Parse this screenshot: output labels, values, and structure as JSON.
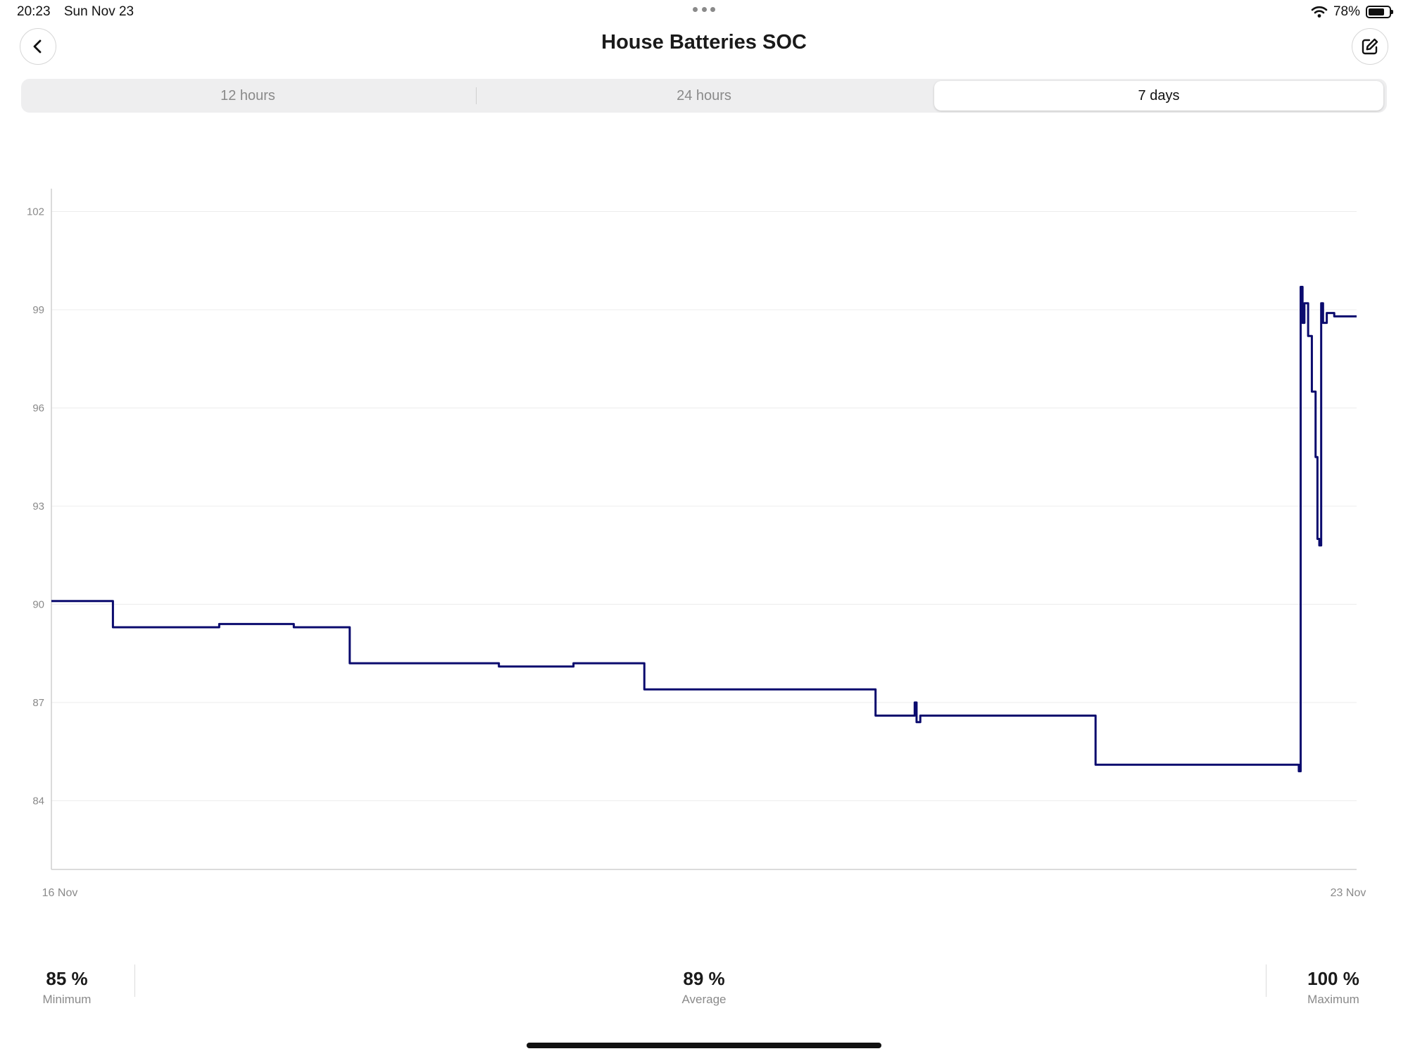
{
  "status_bar": {
    "time": "20:23",
    "date": "Sun Nov 23",
    "battery_percent": "78%",
    "battery_level": 0.78,
    "icons": [
      "wifi-icon",
      "battery-icon",
      "more-dots-icon"
    ]
  },
  "header": {
    "title": "House Batteries SOC",
    "back_icon": "chevron-left-icon",
    "edit_icon": "edit-icon"
  },
  "tabs": [
    {
      "label": "12 hours",
      "active": false
    },
    {
      "label": "24 hours",
      "active": false
    },
    {
      "label": "7 days",
      "active": true
    }
  ],
  "chart_data": {
    "type": "line",
    "line_color": "#0b0b6e",
    "ylim": [
      81.9,
      102.7
    ],
    "y_ticks": [
      "84",
      "87",
      "90",
      "93",
      "96",
      "99",
      "102"
    ],
    "x_labels": [
      "16 Nov",
      "23 Nov"
    ],
    "x_range_days": [
      0,
      7
    ],
    "grid": true,
    "series": [
      {
        "points": [
          [
            0.0,
            90.1
          ],
          [
            0.3,
            90.1
          ],
          [
            0.33,
            90.0
          ],
          [
            0.33,
            89.3
          ],
          [
            0.6,
            89.3
          ],
          [
            0.9,
            89.4
          ],
          [
            1.3,
            89.3
          ],
          [
            1.6,
            89.2
          ],
          [
            1.6,
            88.2
          ],
          [
            2.0,
            88.2
          ],
          [
            2.4,
            88.1
          ],
          [
            2.8,
            88.2
          ],
          [
            3.18,
            88.2
          ],
          [
            3.18,
            87.4
          ],
          [
            3.6,
            87.4
          ],
          [
            4.0,
            87.4
          ],
          [
            4.42,
            87.4
          ],
          [
            4.42,
            86.6
          ],
          [
            4.62,
            86.6
          ],
          [
            4.63,
            87.0
          ],
          [
            4.64,
            86.4
          ],
          [
            4.66,
            86.6
          ],
          [
            5.0,
            86.6
          ],
          [
            5.4,
            86.6
          ],
          [
            5.6,
            86.6
          ],
          [
            5.6,
            85.1
          ],
          [
            6.0,
            85.1
          ],
          [
            6.4,
            85.1
          ],
          [
            6.68,
            85.1
          ],
          [
            6.69,
            84.9
          ],
          [
            6.7,
            99.7
          ],
          [
            6.71,
            98.6
          ],
          [
            6.72,
            99.2
          ],
          [
            6.74,
            98.2
          ],
          [
            6.76,
            96.5
          ],
          [
            6.78,
            94.5
          ],
          [
            6.79,
            92.0
          ],
          [
            6.8,
            91.8
          ],
          [
            6.81,
            99.2
          ],
          [
            6.82,
            98.6
          ],
          [
            6.84,
            98.9
          ],
          [
            6.88,
            98.8
          ],
          [
            7.0,
            98.8
          ]
        ]
      }
    ]
  },
  "stats": [
    {
      "value": "85 %",
      "label": "Minimum"
    },
    {
      "value": "89 %",
      "label": "Average"
    },
    {
      "value": "100 %",
      "label": "Maximum"
    }
  ]
}
